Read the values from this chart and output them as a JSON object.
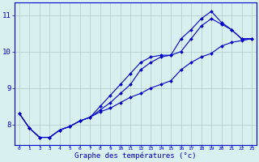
{
  "xlabel": "Graphe des températures (°c)",
  "ylabel": "",
  "background_color": "#d8f0f0",
  "line_color": "#0000cc",
  "xlim": [
    -0.5,
    23.5
  ],
  "ylim": [
    7.45,
    11.35
  ],
  "xtick_labels": [
    "0",
    "1",
    "2",
    "3",
    "4",
    "5",
    "6",
    "7",
    "8",
    "9",
    "10",
    "11",
    "12",
    "13",
    "14",
    "15",
    "16",
    "17",
    "18",
    "19",
    "20",
    "21",
    "22",
    "23"
  ],
  "ytick_values": [
    8,
    9,
    10,
    11
  ],
  "grid_color": "#b0c8c8",
  "hours": [
    0,
    1,
    2,
    3,
    4,
    5,
    6,
    7,
    8,
    9,
    10,
    11,
    12,
    13,
    14,
    15,
    16,
    17,
    18,
    19,
    20,
    21,
    22,
    23
  ],
  "line1": [
    8.3,
    7.9,
    7.65,
    7.65,
    7.85,
    7.95,
    8.1,
    8.2,
    8.35,
    8.45,
    8.6,
    8.75,
    8.85,
    9.0,
    9.1,
    9.2,
    9.5,
    9.7,
    9.85,
    9.95,
    10.15,
    10.25,
    10.3,
    10.35
  ],
  "line2": [
    8.3,
    7.9,
    7.65,
    7.65,
    7.85,
    7.95,
    8.1,
    8.2,
    8.4,
    8.6,
    8.85,
    9.1,
    9.5,
    9.7,
    9.85,
    9.9,
    10.0,
    10.35,
    10.7,
    10.9,
    10.75,
    10.6,
    10.35,
    10.35
  ],
  "line3": [
    8.3,
    7.9,
    7.65,
    7.65,
    7.85,
    7.95,
    8.1,
    8.2,
    8.5,
    8.8,
    9.1,
    9.4,
    9.7,
    9.85,
    9.9,
    9.9,
    10.35,
    10.6,
    10.9,
    11.1,
    10.8,
    10.6,
    10.35,
    10.35
  ]
}
